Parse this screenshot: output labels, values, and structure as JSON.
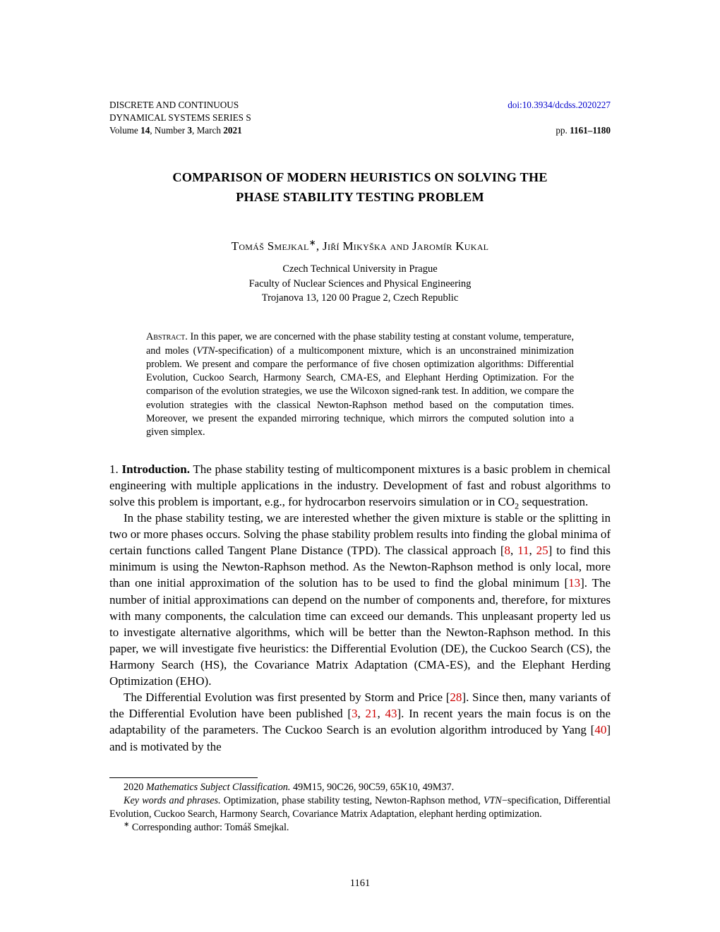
{
  "header": {
    "journal_line1": "DISCRETE AND CONTINUOUS",
    "journal_line2": "DYNAMICAL SYSTEMS SERIES S",
    "volume_line_prefix": "Volume ",
    "volume": "14",
    "number_prefix": ", Number ",
    "number": "3",
    "month_prefix": ", March ",
    "year": "2021",
    "doi_label": "doi:10.3934/dcdss.2020227",
    "pages_prefix": "pp. ",
    "pages": "1161–1180"
  },
  "title": {
    "line1": "COMPARISON OF MODERN HEURISTICS ON SOLVING THE",
    "line2": "PHASE STABILITY TESTING PROBLEM"
  },
  "authors": "Tomáš Smejkal",
  "authors_sep1": ", ",
  "author2": "Jiří Mikyška and Jaromír Kukal",
  "affiliation": {
    "line1": "Czech Technical University in Prague",
    "line2": "Faculty of Nuclear Sciences and Physical Engineering",
    "line3": "Trojanova 13, 120 00 Prague 2, Czech Republic"
  },
  "abstract": {
    "label": "Abstract.",
    "text1": " In this paper, we are concerned with the phase stability testing at constant volume, temperature, and moles (",
    "vtn": "VTN",
    "text2": "-specification) of a multicomponent mixture, which is an unconstrained minimization problem. We present and compare the performance of five chosen optimization algorithms: Differential Evolution, Cuckoo Search, Harmony Search, CMA-ES, and Elephant Herding Optimization. For the comparison of the evolution strategies, we use the Wilcoxon signed-rank test. In addition, we compare the evolution strategies with the classical Newton-Raphson method based on the computation times. Moreover, we present the expanded mirroring technique, which mirrors the computed solution into a given simplex."
  },
  "intro": {
    "heading_num": "1. ",
    "heading": "Introduction.",
    "p1a": " The phase stability testing of multicomponent mixtures is a basic problem in chemical engineering with multiple applications in the industry. Development of fast and robust algorithms to solve this problem is important, e.g., for hydrocarbon reservoirs simulation or in CO",
    "p1b": " sequestration.",
    "p2a": "In the phase stability testing, we are interested whether the given mixture is stable or the splitting in two or more phases occurs. Solving the phase stability problem results into finding the global minima of certain functions called Tangent Plane Distance (TPD). The classical approach [",
    "ref8": "8",
    "sep1": ", ",
    "ref11": "11",
    "sep2": ", ",
    "ref25": "25",
    "p2b": "] to find this minimum is using the Newton-Raphson method. As the Newton-Raphson method is only local, more than one initial approximation of the solution has to be used to find the global minimum [",
    "ref13": "13",
    "p2c": "]. The number of initial approximations can depend on the number of components and, therefore, for mixtures with many components, the calculation time can exceed our demands. This unpleasant property led us to investigate alternative algorithms, which will be better than the Newton-Raphson method. In this paper, we will investigate five heuristics: the Differential Evolution (DE), the Cuckoo Search (CS), the Harmony Search (HS), the Covariance Matrix Adaptation (CMA-ES), and the Elephant Herding Optimization (EHO).",
    "p3a": "The Differential Evolution was first presented by Storm and Price [",
    "ref28": "28",
    "p3b": "]. Since then, many variants of the Differential Evolution have been published [",
    "ref3": "3",
    "sep3": ", ",
    "ref21": "21",
    "sep4": ", ",
    "ref43": "43",
    "p3c": "]. In recent years the main focus is on the adaptability of the parameters. The Cuckoo Search is an evolution algorithm introduced by Yang [",
    "ref40": "40",
    "p3d": "] and is motivated by the"
  },
  "footnotes": {
    "msc_label": "2020 ",
    "msc_italic": "Mathematics Subject Classification.",
    "msc_text": " 49M15, 90C26, 90C59, 65K10, 49M37.",
    "kw_italic": "Key words and phrases.",
    "kw_text1": " Optimization, phase stability testing, Newton-Raphson method, ",
    "vtn": "VTN",
    "kw_text2": "−specification, Differential Evolution, Cuckoo Search, Harmony Search, Covariance Matrix Adaptation, elephant herding optimization.",
    "corr_sym": "∗",
    "corr_text": " Corresponding author: Tomáš Smejkal."
  },
  "page_number": "1161"
}
